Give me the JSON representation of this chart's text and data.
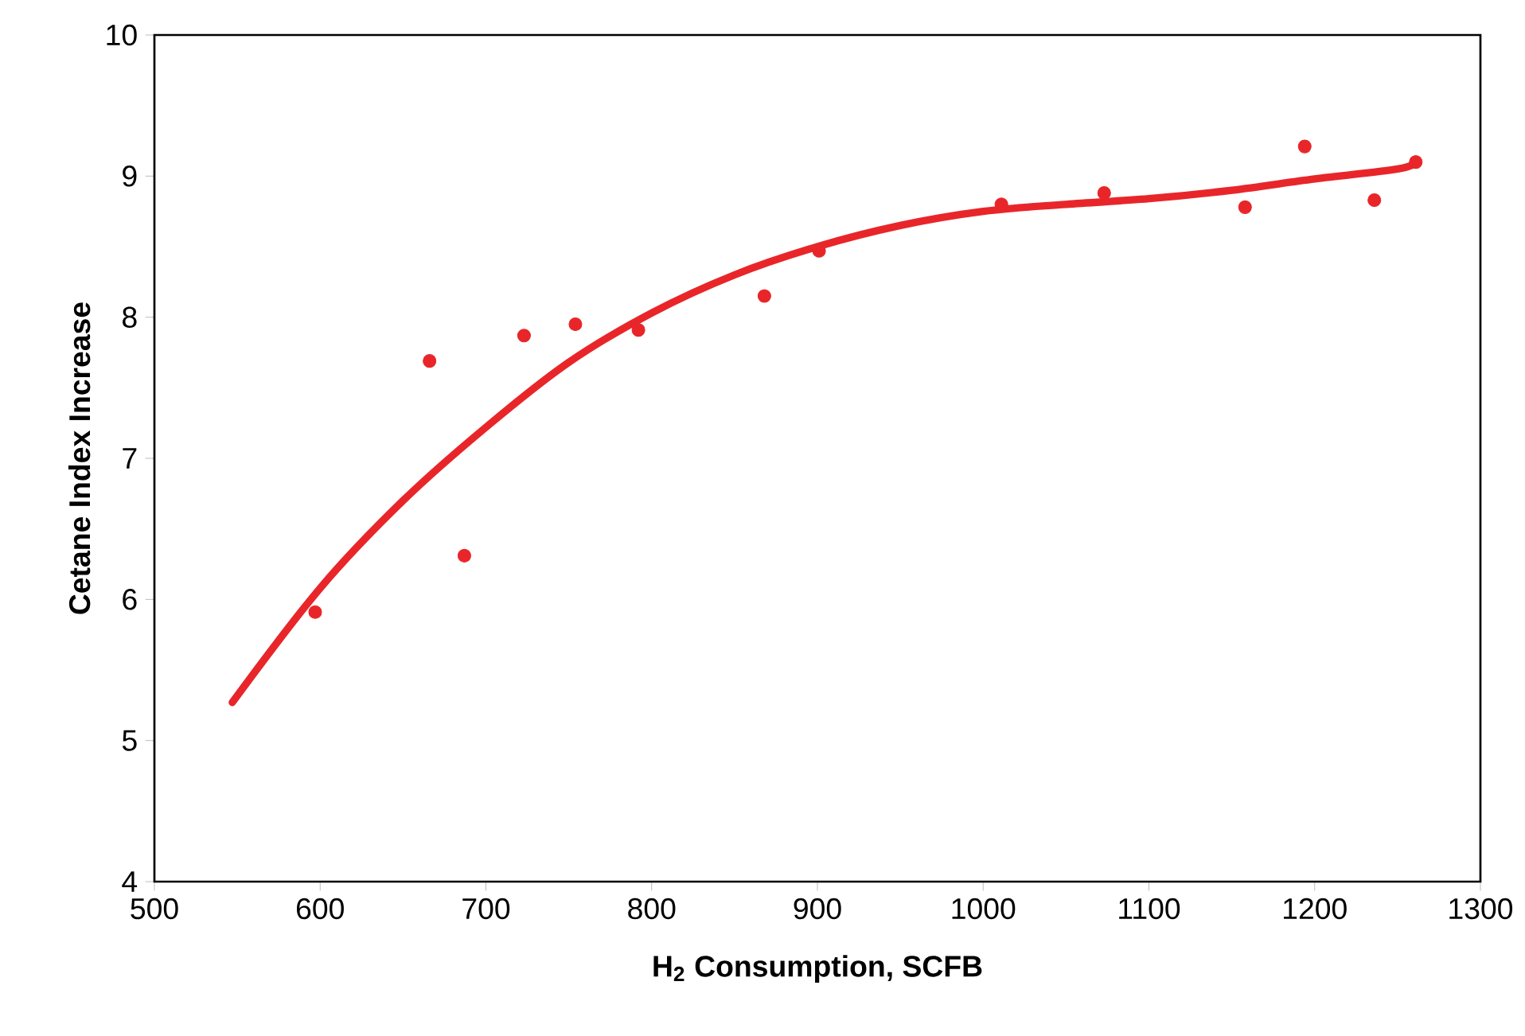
{
  "chart_data": {
    "type": "scatter",
    "xlabel": "H$_{2}$ Consumption, SCFB",
    "ylabel": "Cetane Index Increase",
    "xlim": [
      500,
      1300
    ],
    "xticks": [
      500,
      600,
      700,
      800,
      900,
      1000,
      1100,
      1200,
      1300
    ],
    "ylim": [
      4,
      10
    ],
    "yticks": [
      4,
      5,
      6,
      7,
      8,
      9,
      10
    ],
    "grid": false,
    "series": [
      {
        "marker": "circle",
        "color": "#e8262a",
        "x": [
          597,
          666,
          687,
          723,
          754,
          792,
          868,
          901,
          1011,
          1073,
          1158,
          1194,
          1236,
          1261
        ],
        "values": [
          5.91,
          7.69,
          6.31,
          7.87,
          7.95,
          7.91,
          8.15,
          8.47,
          8.8,
          8.88,
          8.78,
          9.21,
          8.83,
          9.1
        ]
      },
      {
        "type": "line",
        "marker": "none",
        "line_style": "solid",
        "color": "#e8262a",
        "x": [
          547,
          600,
          650,
          700,
          750,
          800,
          850,
          900,
          950,
          1000,
          1050,
          1100,
          1150,
          1200,
          1250,
          1261
        ],
        "values": [
          5.27,
          6.08,
          6.7,
          7.22,
          7.68,
          8.03,
          8.3,
          8.5,
          8.65,
          8.75,
          8.8,
          8.84,
          8.9,
          8.98,
          9.05,
          9.1
        ]
      }
    ]
  }
}
